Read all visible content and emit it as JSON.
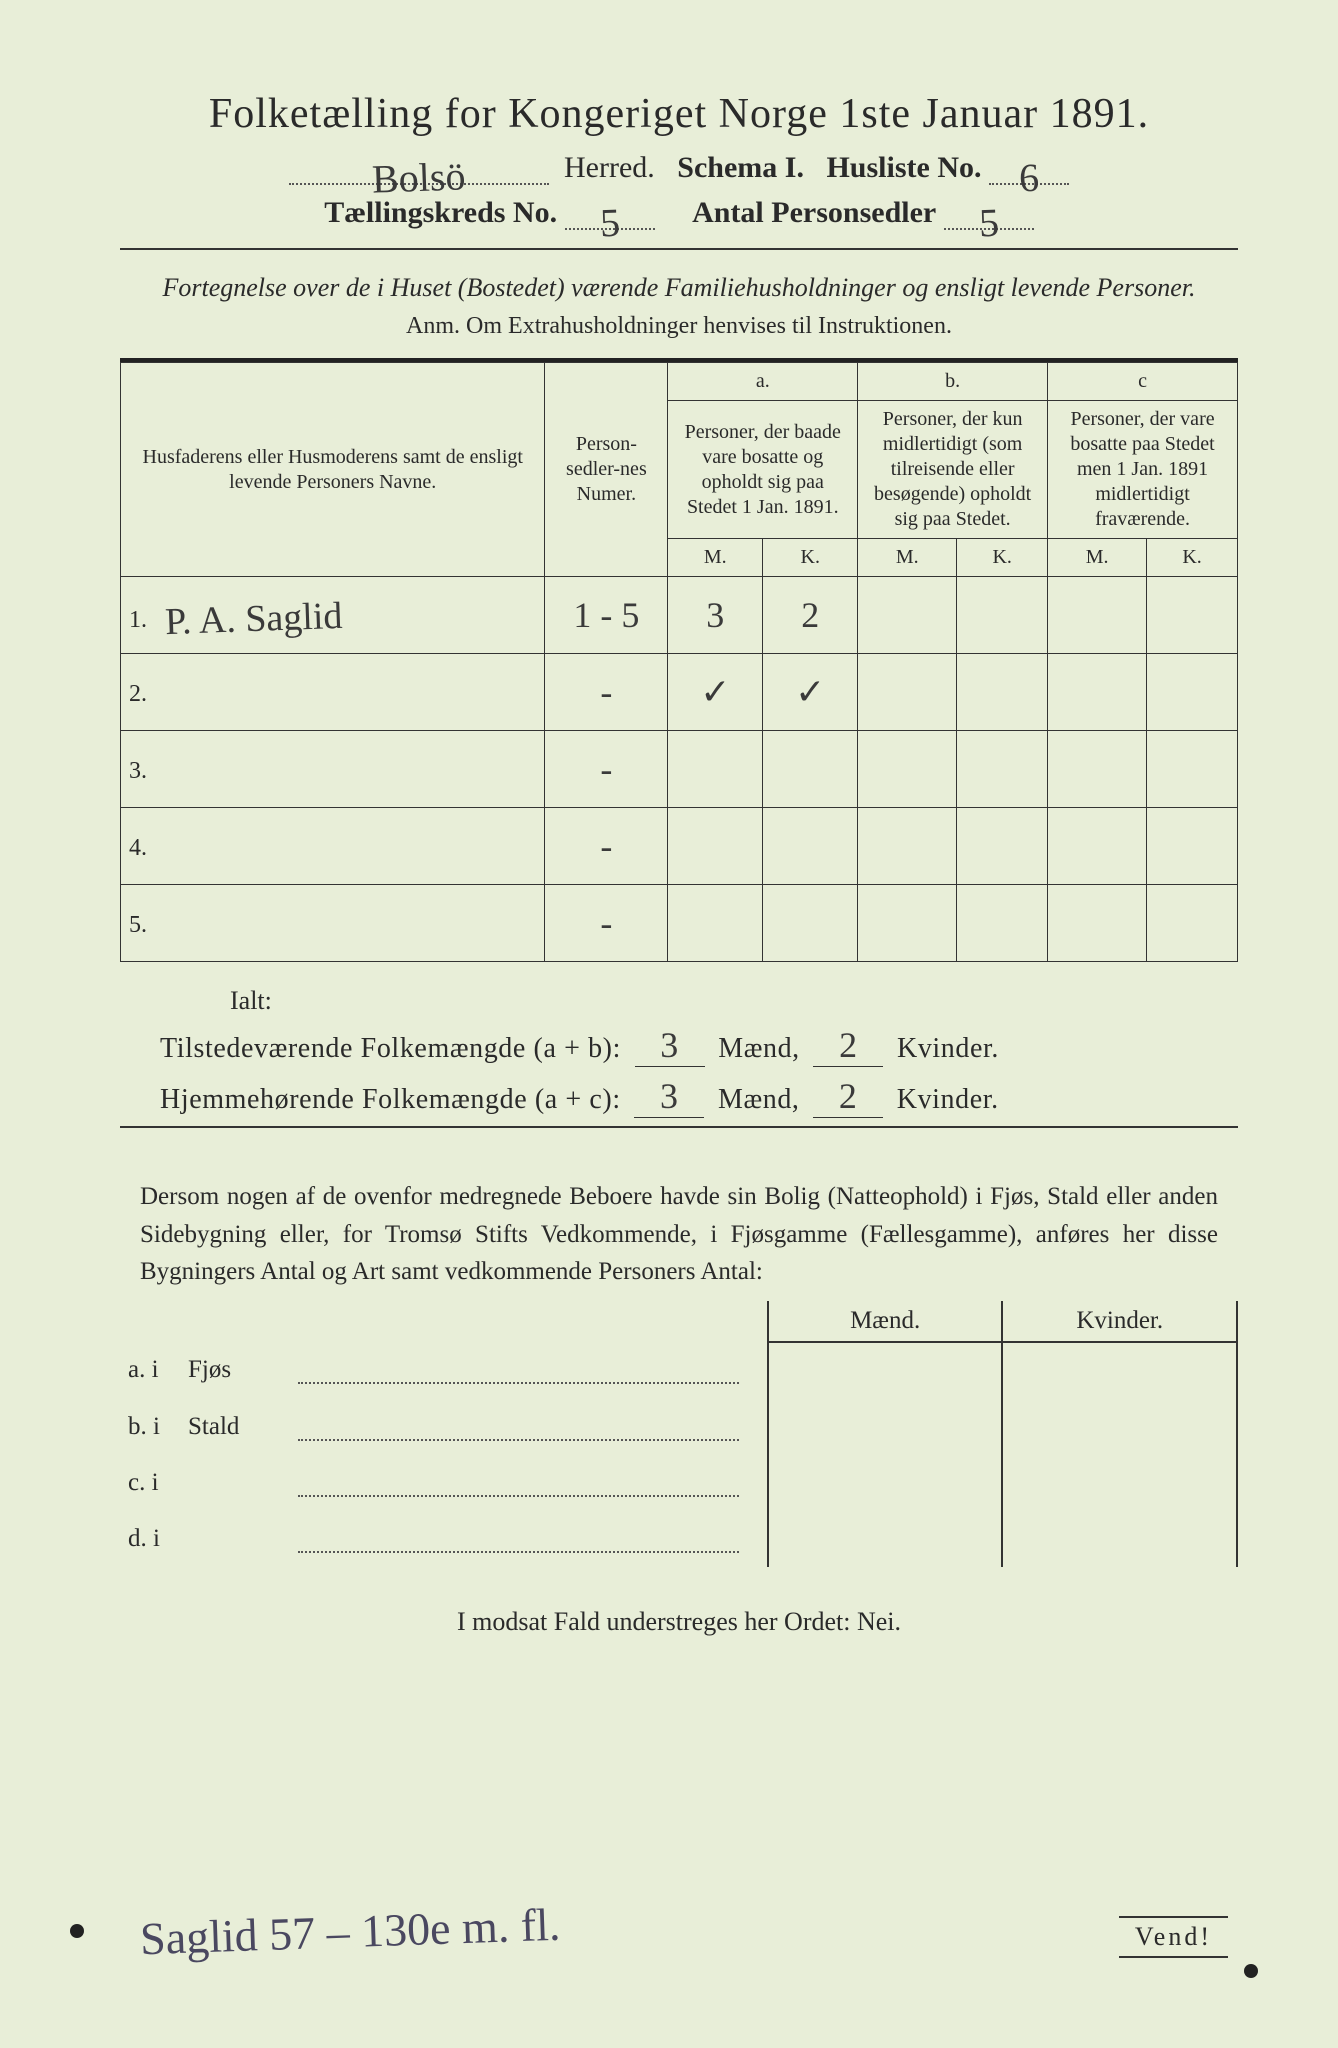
{
  "title": "Folketælling for Kongeriget Norge 1ste Januar 1891.",
  "header": {
    "herred_label": "Herred.",
    "schema_label": "Schema I.",
    "husliste_label": "Husliste No.",
    "herred_value": "Bolsö",
    "husliste_no": "6",
    "kreds_label": "Tællingskreds No.",
    "kreds_no": "5",
    "personsedler_label": "Antal Personsedler",
    "personsedler_no": "5"
  },
  "fortegnelse": "Fortegnelse over de i Huset (Bostedet) værende Familiehusholdninger og ensligt levende Personer.",
  "anm": "Anm. Om Extrahusholdninger henvises til Instruktionen.",
  "table": {
    "col_name": "Husfaderens eller Husmoderens samt de ensligt levende Personers Navne.",
    "col_num": "Person-sedler-nes Numer.",
    "col_a_top": "a.",
    "col_a": "Personer, der baade vare bosatte og opholdt sig paa Stedet 1 Jan. 1891.",
    "col_b_top": "b.",
    "col_b": "Personer, der kun midlertidigt (som tilreisende eller besøgende) opholdt sig paa Stedet.",
    "col_c_top": "c",
    "col_c": "Personer, der vare bosatte paa Stedet men 1 Jan. 1891 midlertidigt fraværende.",
    "M": "M.",
    "K": "K.",
    "rows": [
      {
        "n": "1.",
        "name": "P. A. Saglid",
        "num": "1 - 5",
        "aM": "3",
        "aK": "2",
        "bM": "",
        "bK": "",
        "cM": "",
        "cK": ""
      },
      {
        "n": "2.",
        "name": "",
        "num": "-",
        "aM": "✓",
        "aK": "✓",
        "bM": "",
        "bK": "",
        "cM": "",
        "cK": ""
      },
      {
        "n": "3.",
        "name": "",
        "num": "-",
        "aM": "",
        "aK": "",
        "bM": "",
        "bK": "",
        "cM": "",
        "cK": ""
      },
      {
        "n": "4.",
        "name": "",
        "num": "-",
        "aM": "",
        "aK": "",
        "bM": "",
        "bK": "",
        "cM": "",
        "cK": ""
      },
      {
        "n": "5.",
        "name": "",
        "num": "-",
        "aM": "",
        "aK": "",
        "bM": "",
        "bK": "",
        "cM": "",
        "cK": ""
      }
    ]
  },
  "totals": {
    "ialt": "Ialt:",
    "line1_label": "Tilstedeværende Folkemængde (a + b):",
    "line2_label": "Hjemmehørende Folkemængde (a + c):",
    "maend": "Mænd,",
    "kvinder": "Kvinder.",
    "l1_m": "3",
    "l1_k": "2",
    "l2_m": "3",
    "l2_k": "2"
  },
  "dersom": "Dersom nogen af de ovenfor medregnede Beboere havde sin Bolig (Natteophold) i Fjøs, Stald eller anden Sidebygning eller, for Tromsø Stifts Vedkommende, i Fjøsgamme (Fællesgamme), anføres her disse Bygningers Antal og Art samt vedkommende Personers Antal:",
  "side": {
    "maend": "Mænd.",
    "kvinder": "Kvinder.",
    "rows": [
      {
        "l": "a.  i",
        "t": "Fjøs"
      },
      {
        "l": "b.  i",
        "t": "Stald"
      },
      {
        "l": "c.  i",
        "t": ""
      },
      {
        "l": "d.  i",
        "t": ""
      }
    ]
  },
  "nei": "I modsat Fald understreges her Ordet: Nei.",
  "vend": "Vend!",
  "footnote": "Saglid 57 – 130e m. fl.",
  "colors": {
    "paper": "#e8eed8",
    "ink": "#2a2a2a",
    "pencil": "#4a4860"
  }
}
